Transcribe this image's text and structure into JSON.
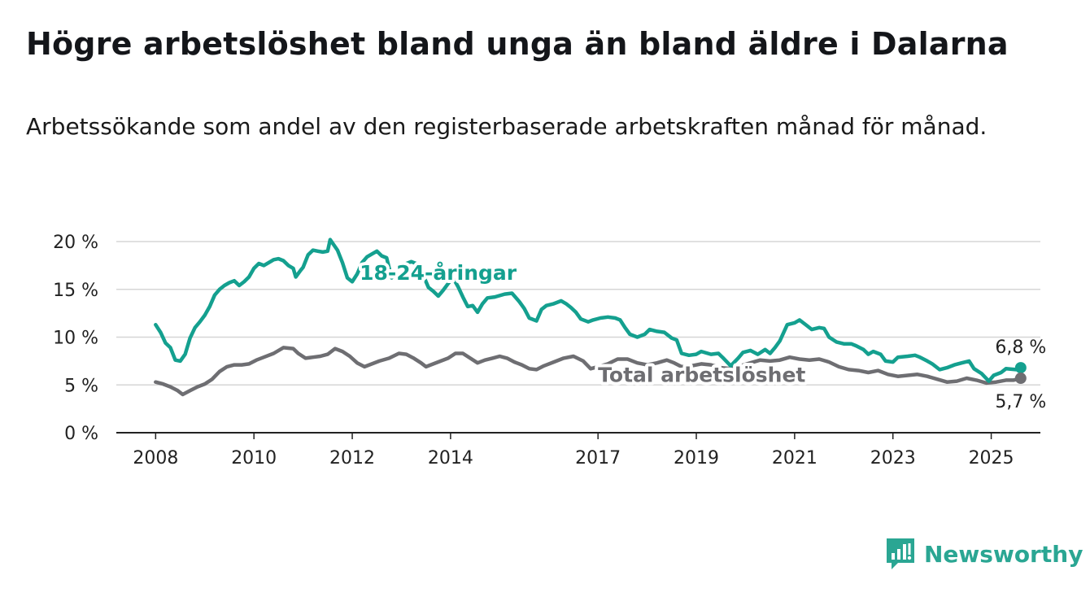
{
  "title": "Högre arbetslöshet bland unga än bland äldre i Dalarna",
  "subtitle": "Arbetssökande som andel av den registerbaserade arbetskraften månad för månad.",
  "brand": "Newsworthy",
  "colors": {
    "youth": "#14a08f",
    "total": "#6e6e72",
    "grid": "#d6d6d6",
    "axis": "#222222",
    "brand": "#2aa693"
  },
  "chart_data": {
    "type": "line",
    "title": "Högre arbetslöshet bland unga än bland äldre i Dalarna",
    "subtitle": "Arbetssökande som andel av den registerbaserade arbetskraften månad för månad.",
    "xlabel": "",
    "ylabel": "",
    "x_range": [
      2007.2,
      2026.0
    ],
    "ylim": [
      0,
      20
    ],
    "y_ticks": [
      0,
      5,
      10,
      15,
      20
    ],
    "y_tick_labels": [
      "0 %",
      "5 %",
      "10 %",
      "15 %",
      "20 %"
    ],
    "x_ticks": [
      2008,
      2010,
      2012,
      2014,
      2017,
      2019,
      2021,
      2023,
      2025
    ],
    "x_tick_labels": [
      "2008",
      "2010",
      "2012",
      "2014",
      "2017",
      "2019",
      "2021",
      "2023",
      "2025"
    ],
    "grid": true,
    "series": [
      {
        "name": "18-24-åringar",
        "color": "#14a08f",
        "end_label": "6,8 %",
        "points": [
          [
            2008.0,
            11.3
          ],
          [
            2008.1,
            10.5
          ],
          [
            2008.2,
            9.4
          ],
          [
            2008.3,
            8.9
          ],
          [
            2008.4,
            7.6
          ],
          [
            2008.5,
            7.5
          ],
          [
            2008.6,
            8.2
          ],
          [
            2008.7,
            9.9
          ],
          [
            2008.8,
            11.0
          ],
          [
            2008.9,
            11.6
          ],
          [
            2009.0,
            12.3
          ],
          [
            2009.1,
            13.2
          ],
          [
            2009.2,
            14.4
          ],
          [
            2009.3,
            15.0
          ],
          [
            2009.4,
            15.4
          ],
          [
            2009.5,
            15.7
          ],
          [
            2009.6,
            15.9
          ],
          [
            2009.7,
            15.4
          ],
          [
            2009.8,
            15.8
          ],
          [
            2009.9,
            16.3
          ],
          [
            2010.0,
            17.2
          ],
          [
            2010.1,
            17.7
          ],
          [
            2010.2,
            17.5
          ],
          [
            2010.3,
            17.8
          ],
          [
            2010.4,
            18.1
          ],
          [
            2010.5,
            18.2
          ],
          [
            2010.6,
            18.0
          ],
          [
            2010.7,
            17.5
          ],
          [
            2010.8,
            17.2
          ],
          [
            2010.85,
            16.3
          ],
          [
            2010.95,
            17.0
          ],
          [
            2011.0,
            17.3
          ],
          [
            2011.1,
            18.6
          ],
          [
            2011.2,
            19.1
          ],
          [
            2011.3,
            19.0
          ],
          [
            2011.4,
            18.9
          ],
          [
            2011.5,
            19.0
          ],
          [
            2011.55,
            20.2
          ],
          [
            2011.7,
            19.1
          ],
          [
            2011.8,
            17.8
          ],
          [
            2011.9,
            16.2
          ],
          [
            2012.0,
            15.8
          ],
          [
            2012.1,
            16.6
          ],
          [
            2012.2,
            17.8
          ],
          [
            2012.3,
            18.4
          ],
          [
            2012.4,
            18.7
          ],
          [
            2012.5,
            19.0
          ],
          [
            2012.6,
            18.5
          ],
          [
            2012.7,
            18.3
          ],
          [
            2012.8,
            16.2
          ],
          [
            2012.9,
            16.8
          ],
          [
            2013.0,
            17.5
          ],
          [
            2013.2,
            17.9
          ],
          [
            2013.35,
            17.6
          ],
          [
            2013.45,
            16.4
          ],
          [
            2013.55,
            15.2
          ],
          [
            2013.65,
            14.8
          ],
          [
            2013.75,
            14.3
          ],
          [
            2013.85,
            14.9
          ],
          [
            2013.95,
            15.6
          ],
          [
            2014.05,
            16.2
          ],
          [
            2014.15,
            15.3
          ],
          [
            2014.25,
            14.2
          ],
          [
            2014.35,
            13.2
          ],
          [
            2014.45,
            13.3
          ],
          [
            2014.55,
            12.6
          ],
          [
            2014.65,
            13.5
          ],
          [
            2014.75,
            14.1
          ],
          [
            2014.9,
            14.2
          ],
          [
            2015.1,
            14.5
          ],
          [
            2015.25,
            14.6
          ],
          [
            2015.4,
            13.7
          ],
          [
            2015.5,
            13.0
          ],
          [
            2015.6,
            12.0
          ],
          [
            2015.75,
            11.7
          ],
          [
            2015.85,
            12.9
          ],
          [
            2015.95,
            13.3
          ],
          [
            2016.1,
            13.5
          ],
          [
            2016.25,
            13.8
          ],
          [
            2016.35,
            13.5
          ],
          [
            2016.45,
            13.1
          ],
          [
            2016.55,
            12.6
          ],
          [
            2016.65,
            11.9
          ],
          [
            2016.8,
            11.6
          ],
          [
            2016.9,
            11.8
          ],
          [
            2017.05,
            12.0
          ],
          [
            2017.2,
            12.1
          ],
          [
            2017.35,
            12.0
          ],
          [
            2017.45,
            11.8
          ],
          [
            2017.55,
            11.0
          ],
          [
            2017.65,
            10.3
          ],
          [
            2017.8,
            10.0
          ],
          [
            2017.95,
            10.3
          ],
          [
            2018.05,
            10.8
          ],
          [
            2018.2,
            10.6
          ],
          [
            2018.35,
            10.5
          ],
          [
            2018.5,
            9.9
          ],
          [
            2018.6,
            9.7
          ],
          [
            2018.7,
            8.3
          ],
          [
            2018.85,
            8.1
          ],
          [
            2019.0,
            8.2
          ],
          [
            2019.1,
            8.5
          ],
          [
            2019.3,
            8.2
          ],
          [
            2019.45,
            8.3
          ],
          [
            2019.55,
            7.8
          ],
          [
            2019.7,
            7.0
          ],
          [
            2019.85,
            7.8
          ],
          [
            2019.95,
            8.4
          ],
          [
            2020.1,
            8.6
          ],
          [
            2020.25,
            8.2
          ],
          [
            2020.4,
            8.7
          ],
          [
            2020.5,
            8.3
          ],
          [
            2020.6,
            8.9
          ],
          [
            2020.7,
            9.6
          ],
          [
            2020.85,
            11.3
          ],
          [
            2021.0,
            11.5
          ],
          [
            2021.1,
            11.8
          ],
          [
            2021.25,
            11.2
          ],
          [
            2021.35,
            10.8
          ],
          [
            2021.5,
            11.0
          ],
          [
            2021.6,
            10.9
          ],
          [
            2021.7,
            10.0
          ],
          [
            2021.85,
            9.5
          ],
          [
            2022.0,
            9.3
          ],
          [
            2022.15,
            9.3
          ],
          [
            2022.25,
            9.1
          ],
          [
            2022.4,
            8.7
          ],
          [
            2022.5,
            8.2
          ],
          [
            2022.6,
            8.5
          ],
          [
            2022.75,
            8.2
          ],
          [
            2022.85,
            7.5
          ],
          [
            2023.0,
            7.4
          ],
          [
            2023.1,
            7.9
          ],
          [
            2023.3,
            8.0
          ],
          [
            2023.45,
            8.1
          ],
          [
            2023.55,
            7.9
          ],
          [
            2023.7,
            7.5
          ],
          [
            2023.8,
            7.2
          ],
          [
            2023.95,
            6.6
          ],
          [
            2024.1,
            6.8
          ],
          [
            2024.25,
            7.1
          ],
          [
            2024.4,
            7.3
          ],
          [
            2024.55,
            7.5
          ],
          [
            2024.65,
            6.7
          ],
          [
            2024.8,
            6.2
          ],
          [
            2024.95,
            5.4
          ],
          [
            2025.05,
            6.0
          ],
          [
            2025.2,
            6.3
          ],
          [
            2025.3,
            6.7
          ],
          [
            2025.5,
            6.6
          ],
          [
            2025.6,
            6.8
          ]
        ]
      },
      {
        "name": "Total arbetslöshet",
        "color": "#6e6e72",
        "end_label": "5,7 %",
        "points": [
          [
            2008.0,
            5.3
          ],
          [
            2008.15,
            5.1
          ],
          [
            2008.3,
            4.8
          ],
          [
            2008.45,
            4.4
          ],
          [
            2008.55,
            4.0
          ],
          [
            2008.7,
            4.4
          ],
          [
            2008.85,
            4.8
          ],
          [
            2009.0,
            5.1
          ],
          [
            2009.15,
            5.6
          ],
          [
            2009.3,
            6.4
          ],
          [
            2009.45,
            6.9
          ],
          [
            2009.6,
            7.1
          ],
          [
            2009.75,
            7.1
          ],
          [
            2009.9,
            7.2
          ],
          [
            2010.05,
            7.6
          ],
          [
            2010.2,
            7.9
          ],
          [
            2010.4,
            8.3
          ],
          [
            2010.6,
            8.9
          ],
          [
            2010.8,
            8.8
          ],
          [
            2010.9,
            8.3
          ],
          [
            2011.05,
            7.8
          ],
          [
            2011.2,
            7.9
          ],
          [
            2011.35,
            8.0
          ],
          [
            2011.5,
            8.2
          ],
          [
            2011.65,
            8.8
          ],
          [
            2011.8,
            8.5
          ],
          [
            2011.95,
            8.0
          ],
          [
            2012.1,
            7.3
          ],
          [
            2012.25,
            6.9
          ],
          [
            2012.4,
            7.2
          ],
          [
            2012.55,
            7.5
          ],
          [
            2012.75,
            7.8
          ],
          [
            2012.95,
            8.3
          ],
          [
            2013.1,
            8.2
          ],
          [
            2013.25,
            7.8
          ],
          [
            2013.4,
            7.3
          ],
          [
            2013.5,
            6.9
          ],
          [
            2013.65,
            7.2
          ],
          [
            2013.8,
            7.5
          ],
          [
            2013.95,
            7.8
          ],
          [
            2014.1,
            8.3
          ],
          [
            2014.25,
            8.3
          ],
          [
            2014.4,
            7.8
          ],
          [
            2014.55,
            7.3
          ],
          [
            2014.7,
            7.6
          ],
          [
            2014.85,
            7.8
          ],
          [
            2015.0,
            8.0
          ],
          [
            2015.15,
            7.8
          ],
          [
            2015.3,
            7.4
          ],
          [
            2015.45,
            7.1
          ],
          [
            2015.6,
            6.7
          ],
          [
            2015.75,
            6.6
          ],
          [
            2015.9,
            7.0
          ],
          [
            2016.1,
            7.4
          ],
          [
            2016.3,
            7.8
          ],
          [
            2016.5,
            8.0
          ],
          [
            2016.7,
            7.5
          ],
          [
            2016.85,
            6.7
          ],
          [
            2017.0,
            6.9
          ],
          [
            2017.2,
            7.2
          ],
          [
            2017.4,
            7.7
          ],
          [
            2017.6,
            7.7
          ],
          [
            2017.8,
            7.3
          ],
          [
            2018.0,
            7.1
          ],
          [
            2018.2,
            7.3
          ],
          [
            2018.4,
            7.6
          ],
          [
            2018.55,
            7.3
          ],
          [
            2018.7,
            6.9
          ],
          [
            2018.9,
            7.0
          ],
          [
            2019.1,
            7.2
          ],
          [
            2019.3,
            7.1
          ],
          [
            2019.5,
            6.8
          ],
          [
            2019.7,
            6.7
          ],
          [
            2019.9,
            7.0
          ],
          [
            2020.1,
            7.3
          ],
          [
            2020.3,
            7.6
          ],
          [
            2020.5,
            7.5
          ],
          [
            2020.7,
            7.6
          ],
          [
            2020.9,
            7.9
          ],
          [
            2021.1,
            7.7
          ],
          [
            2021.3,
            7.6
          ],
          [
            2021.5,
            7.7
          ],
          [
            2021.7,
            7.4
          ],
          [
            2021.9,
            6.9
          ],
          [
            2022.1,
            6.6
          ],
          [
            2022.3,
            6.5
          ],
          [
            2022.5,
            6.3
          ],
          [
            2022.7,
            6.5
          ],
          [
            2022.9,
            6.1
          ],
          [
            2023.1,
            5.9
          ],
          [
            2023.3,
            6.0
          ],
          [
            2023.5,
            6.1
          ],
          [
            2023.7,
            5.9
          ],
          [
            2023.9,
            5.6
          ],
          [
            2024.1,
            5.3
          ],
          [
            2024.3,
            5.4
          ],
          [
            2024.5,
            5.7
          ],
          [
            2024.7,
            5.5
          ],
          [
            2024.9,
            5.2
          ],
          [
            2025.1,
            5.3
          ],
          [
            2025.3,
            5.5
          ],
          [
            2025.45,
            5.5
          ],
          [
            2025.6,
            5.7
          ]
        ]
      }
    ]
  }
}
